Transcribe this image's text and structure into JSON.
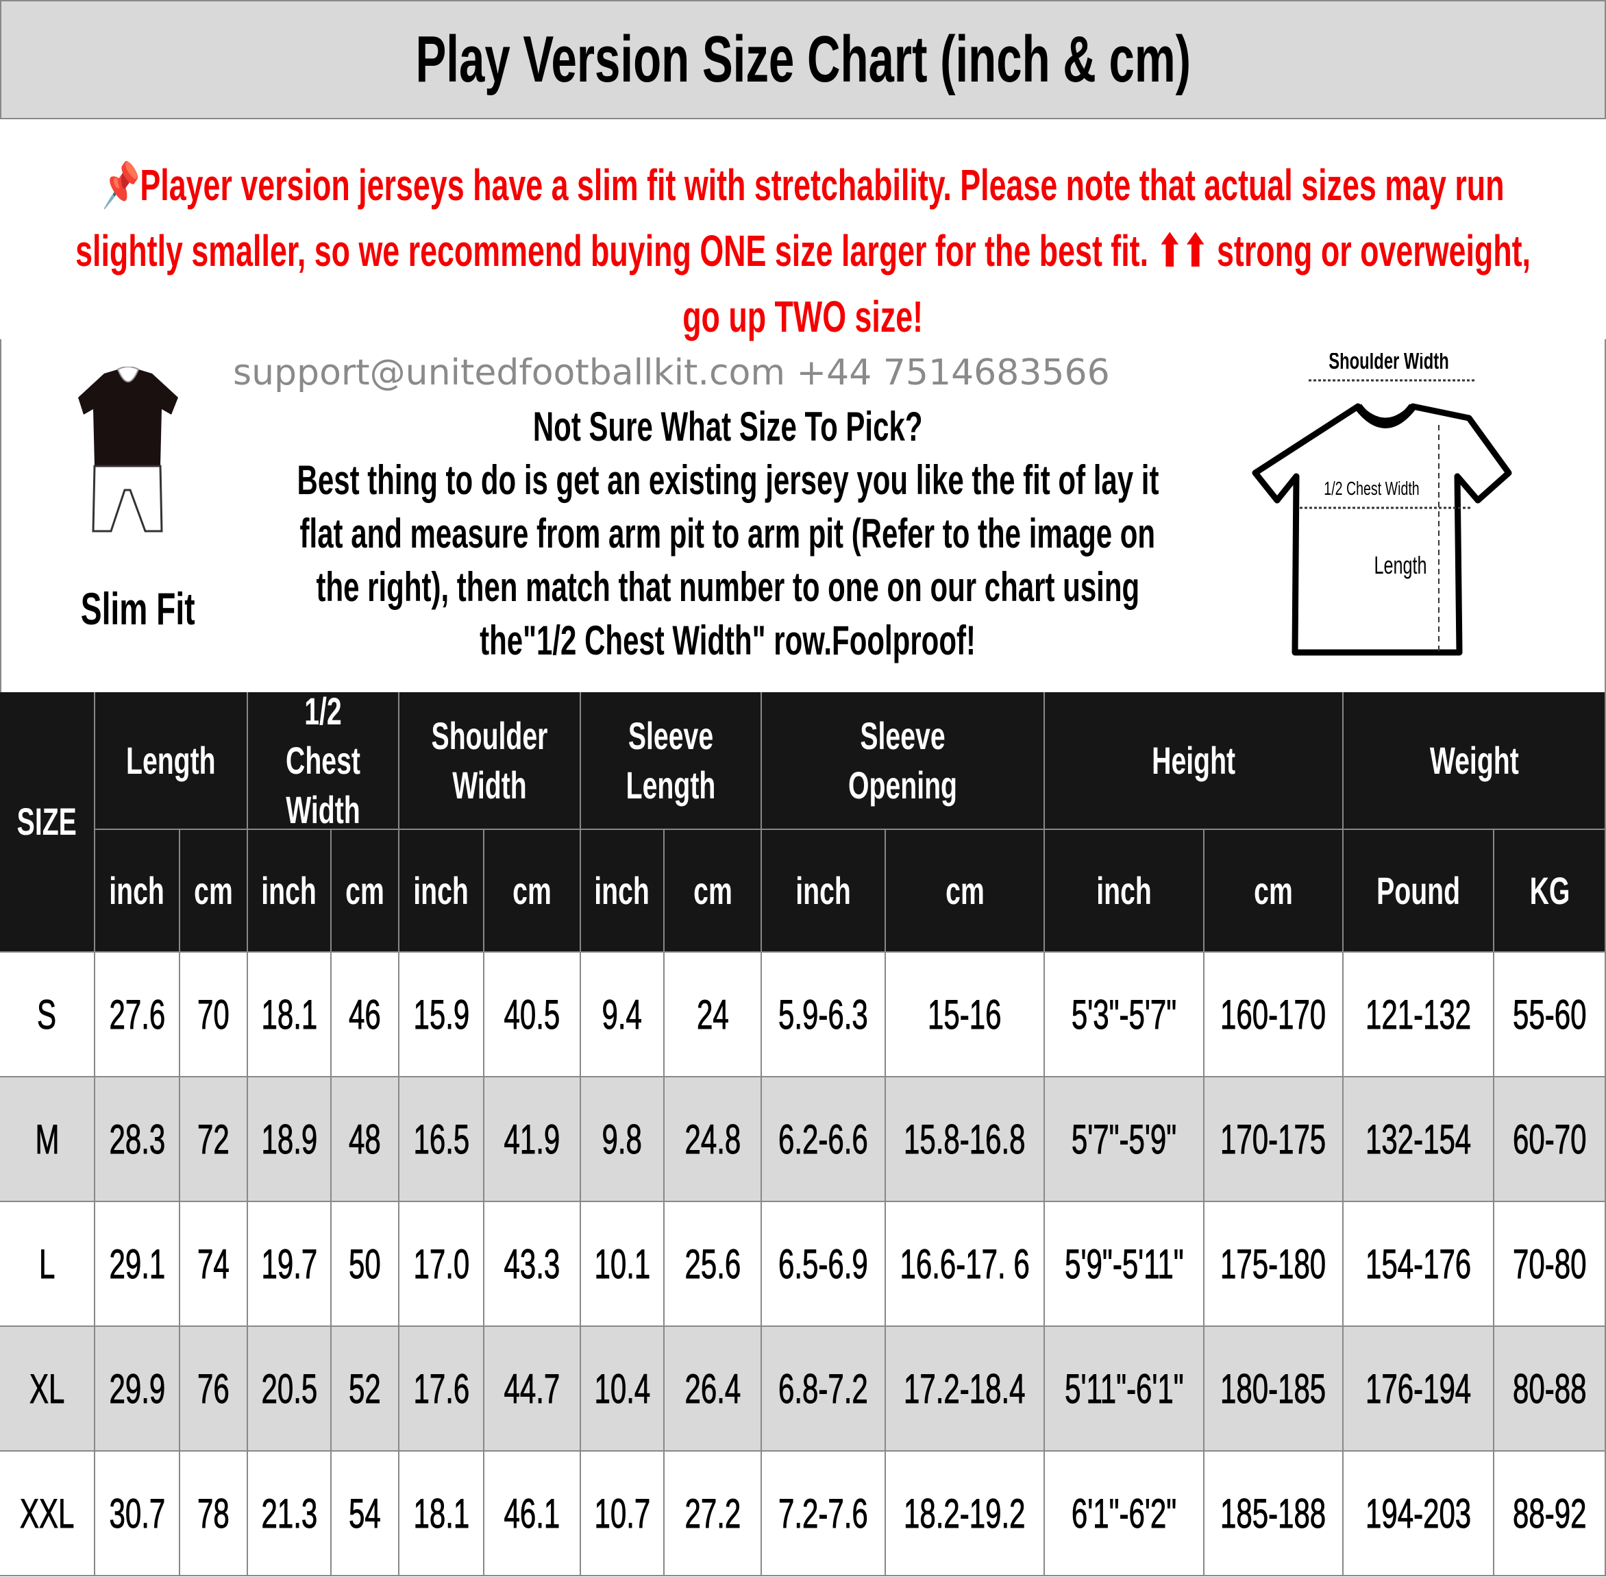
{
  "title": "Play Version Size Chart (inch & cm)",
  "notice": {
    "icon": "pushpin-icon",
    "color": "#f50000",
    "lines": [
      "📌Player version jerseys have a slim fit with stretchability. Please note that actual sizes may run",
      "slightly smaller, so we recommend buying ONE size larger for the best fit. ⬆⬆ strong or overweight,",
      "go up TWO size!"
    ]
  },
  "guide": {
    "lines": [
      "Not Sure What Size To Pick?",
      "Best thing to do is get an existing jersey you like the fit of lay it",
      "flat and measure from arm pit to arm pit (Refer to the image on",
      "the right), then match that number to one on our chart using",
      "the\"1/2 Chest Width\" row.Foolproof!"
    ]
  },
  "fit_label": "Slim Fit",
  "diagram": {
    "shoulder": "Shoulder Width",
    "chest": "1/2 Chest Width",
    "length": "Length"
  },
  "watermark": "support@unitedfootballkit.com   +44 7514683566",
  "table": {
    "size_header": "SIZE",
    "groups": [
      {
        "label": "Length",
        "units": [
          "inch",
          "cm"
        ]
      },
      {
        "label": "1/2 Chest Width",
        "units": [
          "inch",
          "cm"
        ]
      },
      {
        "label": "Shoulder Width",
        "units": [
          "inch",
          "cm"
        ]
      },
      {
        "label": "Sleeve Length",
        "units": [
          "inch",
          "cm"
        ]
      },
      {
        "label": "Sleeve Opening",
        "units": [
          "inch",
          "cm"
        ]
      },
      {
        "label": "Height",
        "units": [
          "inch",
          "cm"
        ]
      },
      {
        "label": "Weight",
        "units": [
          "Pound",
          "KG"
        ]
      }
    ],
    "rows": [
      [
        "S",
        "27.6",
        "70",
        "18.1",
        "46",
        "15.9",
        "40.5",
        "9.4",
        "24",
        "5.9-6.3",
        "15-16",
        "5'3\"-5'7\"",
        "160-170",
        "121-132",
        "55-60"
      ],
      [
        "M",
        "28.3",
        "72",
        "18.9",
        "48",
        "16.5",
        "41.9",
        "9.8",
        "24.8",
        "6.2-6.6",
        "15.8-16.8",
        "5'7\"-5'9\"",
        "170-175",
        "132-154",
        "60-70"
      ],
      [
        "L",
        "29.1",
        "74",
        "19.7",
        "50",
        "17.0",
        "43.3",
        "10.1",
        "25.6",
        "6.5-6.9",
        "16.6-17. 6",
        "5'9\"-5'11\"",
        "175-180",
        "154-176",
        "70-80"
      ],
      [
        "XL",
        "29.9",
        "76",
        "20.5",
        "52",
        "17.6",
        "44.7",
        "10.4",
        "26.4",
        "6.8-7.2",
        "17.2-18.4",
        "5'11\"-6'1\"",
        "180-185",
        "176-194",
        "80-88"
      ],
      [
        "XXL",
        "30.7",
        "78",
        "21.3",
        "54",
        "18.1",
        "46.1",
        "10.7",
        "27.2",
        "7.2-7.6",
        "18.2-19.2",
        "6'1\"-6'2\"",
        "185-188",
        "194-203",
        "88-92"
      ]
    ],
    "row_colors": [
      "#ffffff",
      "#d9d9d9"
    ],
    "header_color": "#161616"
  }
}
